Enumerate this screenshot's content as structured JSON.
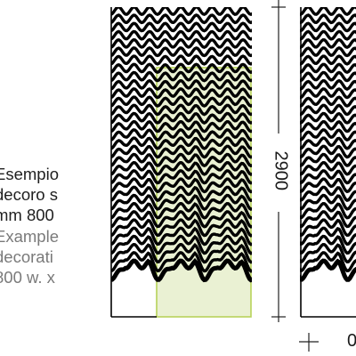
{
  "caption": {
    "italian_lines": [
      "Esempio",
      "decoro s",
      "mm 800"
    ],
    "english_lines": [
      "Example",
      "decorati",
      "800 w. x"
    ]
  },
  "dimensions": {
    "height_label": "2900",
    "width_label": "0"
  },
  "colors": {
    "wave_stroke": "#000000",
    "highlight_fill": "#eaf1d3",
    "highlight_stroke": "#b7d35a",
    "dimension_line": "#222222"
  }
}
